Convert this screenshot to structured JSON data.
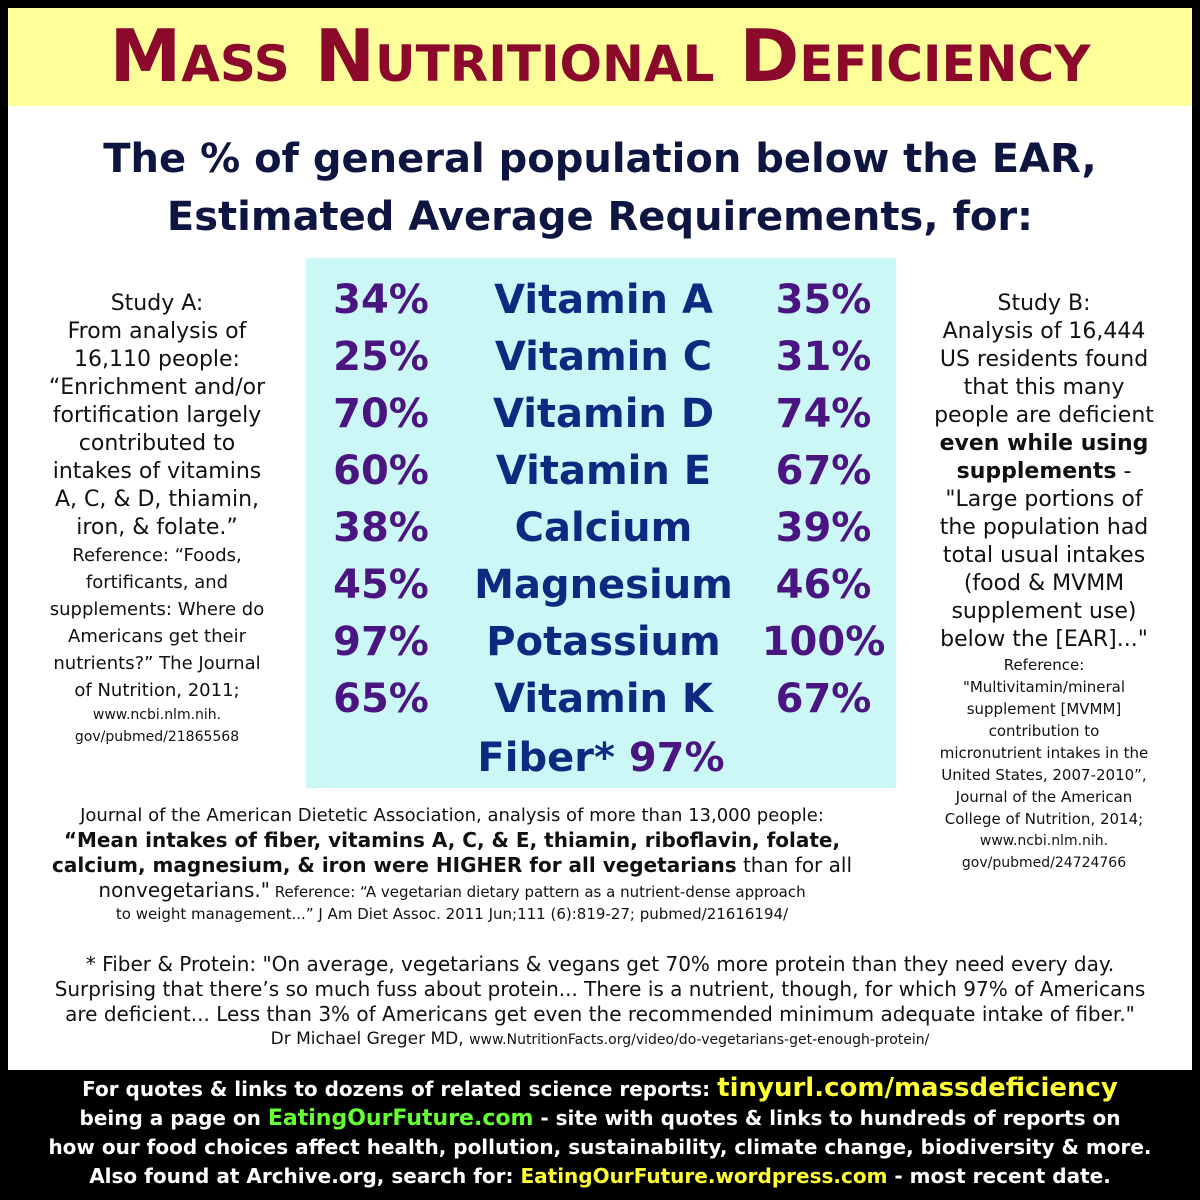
{
  "title": "Mass Nutritional Deficiency",
  "subtitle_line1": "The % of general population below the EAR,",
  "subtitle_line2": "Estimated Average Requirements, for:",
  "table": {
    "rows": [
      {
        "a": "34%",
        "nutrient": "Vitamin A",
        "b": "35%"
      },
      {
        "a": "25%",
        "nutrient": "Vitamin C",
        "b": "31%"
      },
      {
        "a": "70%",
        "nutrient": "Vitamin D",
        "b": "74%"
      },
      {
        "a": "60%",
        "nutrient": "Vitamin E",
        "b": "67%"
      },
      {
        "a": "38%",
        "nutrient": "Calcium",
        "b": "39%"
      },
      {
        "a": "45%",
        "nutrient": "Magnesium",
        "b": "46%"
      },
      {
        "a": "97%",
        "nutrient": "Potassium",
        "b": "100%"
      },
      {
        "a": "65%",
        "nutrient": "Vitamin K",
        "b": "67%"
      }
    ],
    "fiber_label": "Fiber*",
    "fiber_value": "97%"
  },
  "study_a": {
    "lines_big": [
      "Study A:",
      "From analysis of",
      "16,110 people:",
      "“Enrichment and/or",
      "fortification largely",
      "contributed to",
      "intakes of vitamins",
      "A, C, & D, thiamin,",
      "iron, & folate.”"
    ],
    "ref_lines": [
      "Reference: “Foods,",
      "fortificants, and",
      "supplements: Where do",
      "Americans get their",
      "nutrients?” The Journal",
      "of Nutrition, 2011;"
    ],
    "url_lines": [
      "www.ncbi.nlm.nih.",
      "gov/pubmed/21865568"
    ]
  },
  "study_b": {
    "heading": "Study B:",
    "lines_big": [
      "Analysis of 16,444",
      "US residents found",
      "that this many",
      "people are deficient"
    ],
    "bold_line1": "even while using",
    "bold_line2": "supplements",
    "bold_suffix": " -",
    "quote_lines": [
      "\"Large portions of",
      "the population had",
      "total usual intakes",
      "(food & MVMM",
      "supplement use)",
      "below the [EAR]...\""
    ],
    "ref_lines": [
      "Reference:",
      "\"Multivitamin/mineral",
      "supplement [MVMM]",
      "contribution to",
      "micronutrient intakes in the",
      "United States, 2007-2010”,",
      "Journal of the American",
      "College of Nutrition, 2014;",
      "www.ncbi.nlm.nih.",
      "gov/pubmed/24724766"
    ]
  },
  "jada": {
    "intro": "Journal of the American Dietetic Association, analysis of more than 13,000 people:",
    "bold1": "“Mean intakes of fiber, vitamins A, C, & E, thiamin, riboflavin, folate,",
    "bold2": "calcium, magnesium, & iron were HIGHER for all vegetarians",
    "normal2": " than for all",
    "line3_start": "nonvegetarians.\"",
    "line3_ref": " Reference: “A vegetarian dietary pattern as a nutrient-dense approach",
    "line4": "to weight management...” J Am Diet Assoc. 2011 Jun;111 (6):819-27; pubmed/21616194/"
  },
  "fiber_note": {
    "line1": "* Fiber & Protein: \"On average, vegetarians & vegans get 70% more protein than they need every day.",
    "line2": "Surprising that there’s so much fuss about protein... There is a nutrient, though, for which 97% of Americans",
    "line3": "are deficient... Less than 3% of Americans get even the recommended minimum adequate intake of fiber.\"",
    "author": "Dr Michael Greger MD, ",
    "url": "www.NutritionFacts.org/video/do-vegetarians-get-enough-protein/"
  },
  "footer": {
    "l1_text": "For quotes & links to dozens of related science reports: ",
    "l1_link": "tinyurl.com/massdeficiency",
    "l2_a": "being a page on ",
    "l2_link": "EatingOurFuture.com",
    "l2_b": " - site with quotes & links to hundreds of reports on",
    "l3": "how our food choices affect health, pollution, sustainability, climate change, biodiversity & more.",
    "l4_a": "Also found at Archive.org, search for: ",
    "l4_link": "EatingOurFuture.wordpress.com",
    "l4_b": " - most recent date."
  },
  "colors": {
    "banner_bg": "#ffff9a",
    "title": "#8b0a2c",
    "table_bg": "#ccf7f7",
    "percent": "#4a1580",
    "nutrient": "#0d2a80",
    "footer_yellow": "#ffff33",
    "footer_green": "#66ff33"
  }
}
